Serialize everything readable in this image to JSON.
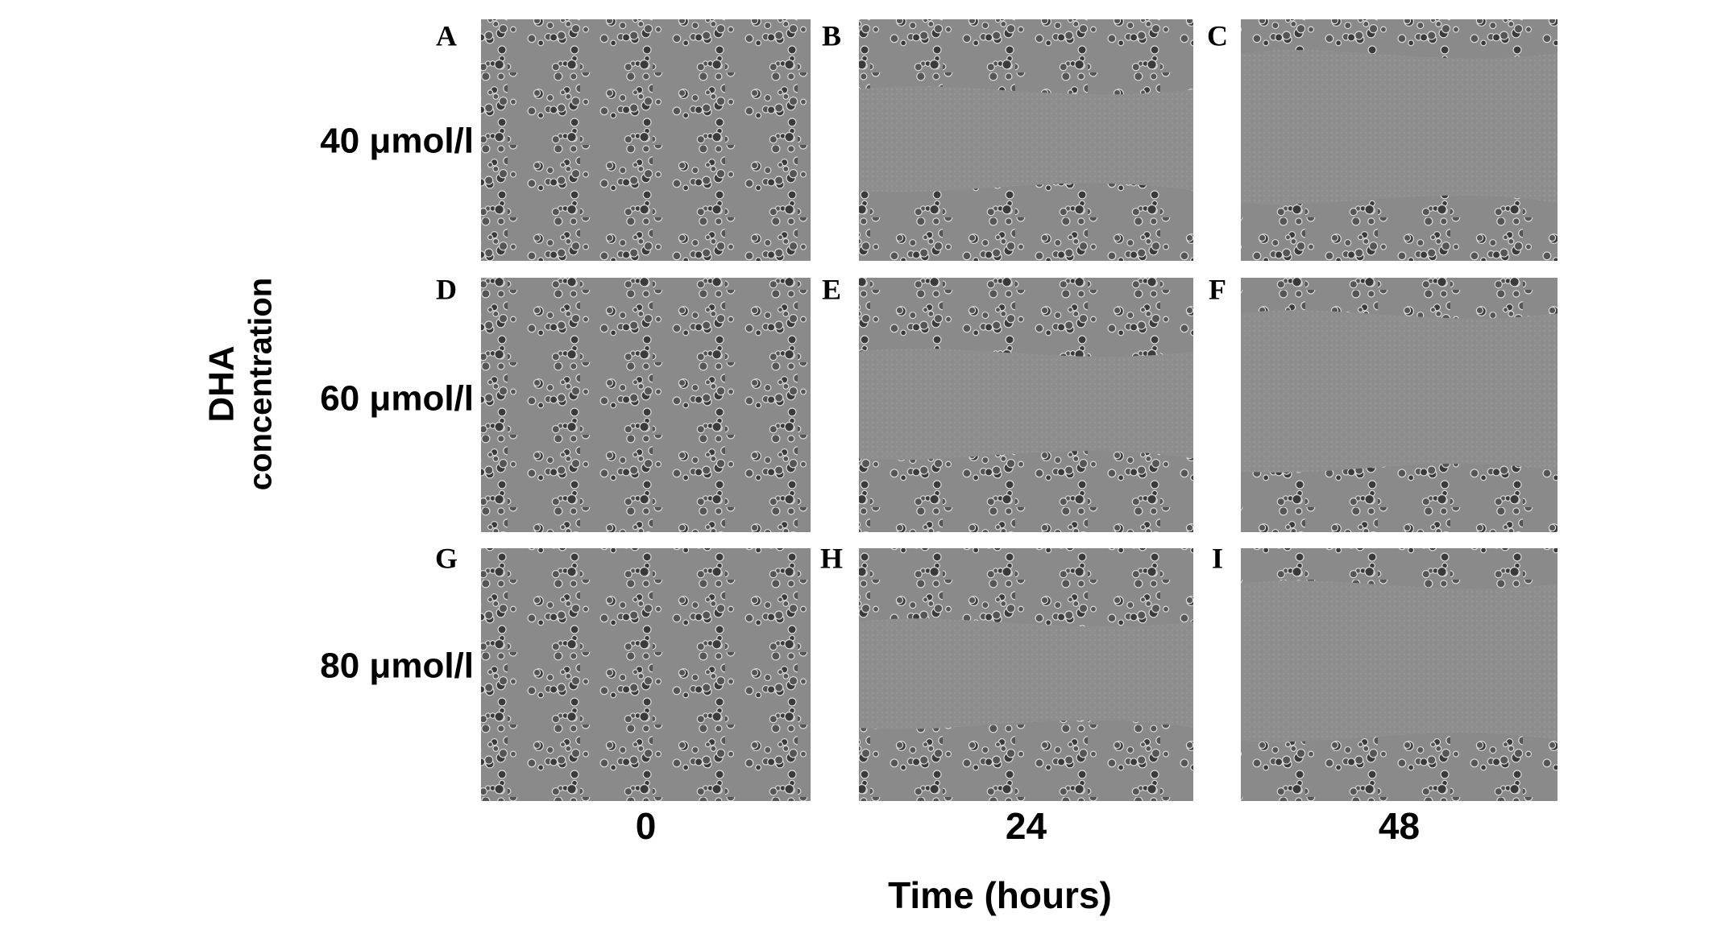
{
  "panel_labels": [
    "A",
    "B",
    "C",
    "D",
    "E",
    "F",
    "G",
    "H",
    "I"
  ],
  "row_labels": [
    "40 μmol/l",
    "60 μmol/l",
    "80 μmol/l"
  ],
  "column_labels": [
    "0",
    "24",
    "48"
  ],
  "x_axis_title": "Time (hours)",
  "y_axis_title": [
    "DHA",
    "concentration"
  ]
}
